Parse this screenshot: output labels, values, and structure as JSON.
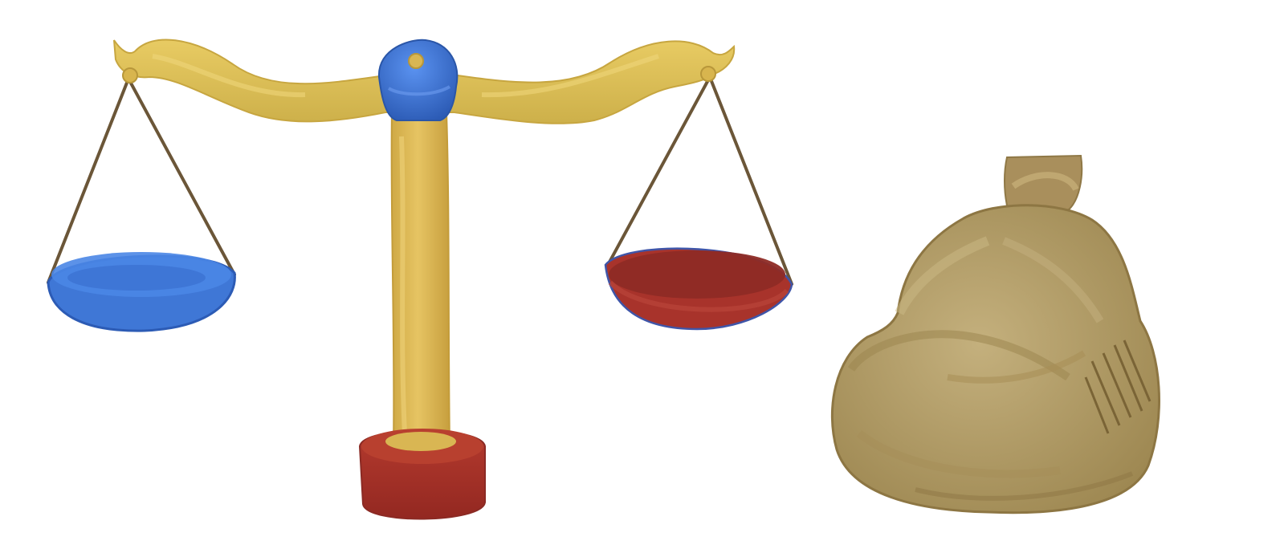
{
  "scene": {
    "items": [
      {
        "name": "balance-scale",
        "parts": [
          "beam",
          "center-knob",
          "post",
          "base",
          "left-pan",
          "right-pan",
          "left-chains",
          "right-chains"
        ]
      },
      {
        "name": "money-sack",
        "parts": [
          "sack-body",
          "sack-neck",
          "stitching"
        ]
      }
    ],
    "colors": {
      "gold": "#E0BE5A",
      "gold_dark": "#C9A23F",
      "blue": "#3F77D6",
      "blue_dark": "#2C5BB5",
      "red": "#A8332B",
      "red_dark": "#8B2A24",
      "chain": "#6B5638",
      "sack": "#B9A46F",
      "sack_dark": "#9C8651",
      "sack_light": "#CBB986"
    }
  }
}
